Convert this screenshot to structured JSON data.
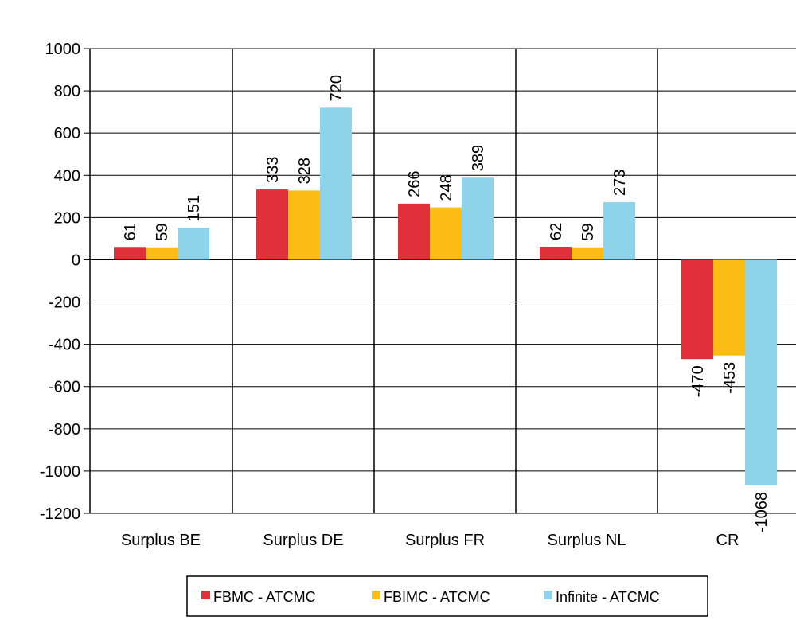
{
  "chart_data": {
    "type": "bar",
    "categories": [
      "Surplus BE",
      "Surplus DE",
      "Surplus FR",
      "Surplus NL",
      "CR"
    ],
    "series": [
      {
        "name": "FBMC - ATCMC",
        "color": "#e0303a",
        "values": [
          61,
          333,
          266,
          62,
          -470
        ]
      },
      {
        "name": "FBIMC - ATCMC",
        "color": "#fbbc14",
        "values": [
          59,
          328,
          248,
          59,
          -453
        ]
      },
      {
        "name": "Infinite - ATCMC",
        "color": "#8fd3ea",
        "values": [
          151,
          720,
          389,
          273,
          -1068
        ]
      }
    ],
    "ylim": [
      -1200,
      1000
    ],
    "yticks": [
      1000,
      800,
      600,
      400,
      200,
      0,
      -200,
      -400,
      -600,
      -800,
      -1000,
      -1200
    ],
    "grid": true,
    "legend_position": "bottom"
  }
}
